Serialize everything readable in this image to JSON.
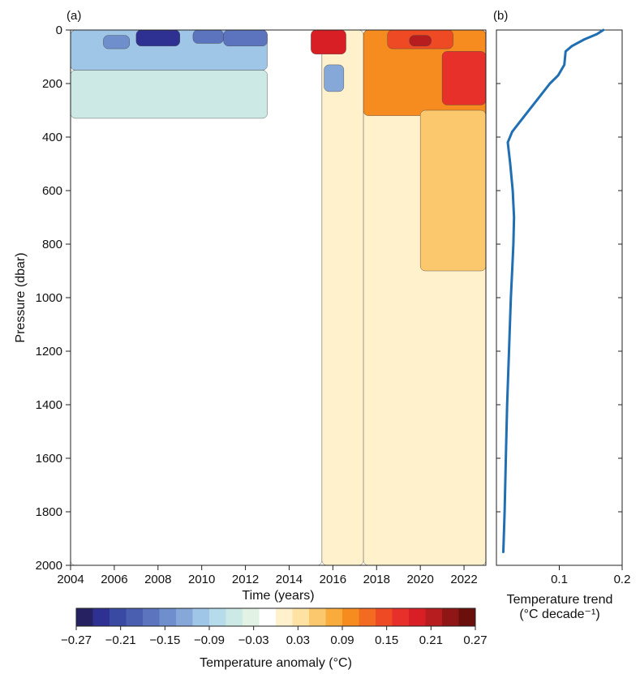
{
  "chart_data": [
    {
      "type": "heatmap",
      "panel_label": "(a)",
      "xlabel": "Time (years)",
      "ylabel": "Pressure (dbar)",
      "xlim": [
        2004,
        2023
      ],
      "ylim": [
        0,
        2000
      ],
      "y_inverted": true,
      "x_ticks": [
        "2004",
        "2006",
        "2008",
        "2010",
        "2012",
        "2014",
        "2016",
        "2018",
        "2020",
        "2022"
      ],
      "y_ticks": [
        "0",
        "200",
        "400",
        "600",
        "800",
        "1000",
        "1200",
        "1400",
        "1600",
        "1800",
        "2000"
      ],
      "grid": false,
      "colorbar": {
        "label": "Temperature anomaly (°C)",
        "range": [
          -0.27,
          0.27
        ],
        "tick_labels": [
          "−0.27",
          "−0.21",
          "−0.15",
          "−0.09",
          "−0.03",
          "0.03",
          "0.09",
          "0.15",
          "0.21",
          "0.27"
        ],
        "colors": [
          "#262262",
          "#2e3192",
          "#3a4aa3",
          "#4a5fb0",
          "#5b74bd",
          "#6f8fcc",
          "#86a8d8",
          "#9fc6e6",
          "#b6dcec",
          "#cde9e6",
          "#e2f2e4",
          "#ffffff",
          "#fff1cc",
          "#fde2a4",
          "#fcc86e",
          "#f9ab3b",
          "#f68b1f",
          "#f26b21",
          "#ee4a23",
          "#e8302a",
          "#d91f26",
          "#b71c1f",
          "#8e1715",
          "#6b0f0d"
        ]
      },
      "regions": [
        {
          "t0": 2004,
          "t1": 2015.5,
          "p0": 0,
          "p1": 2000,
          "anomaly": -0.02
        },
        {
          "t0": 2015.5,
          "t1": 2017.4,
          "p0": 0,
          "p1": 2000,
          "anomaly": 0.0
        },
        {
          "t0": 2017.4,
          "t1": 2023,
          "p0": 0,
          "p1": 2000,
          "anomaly": 0.02
        },
        {
          "t0": 2004,
          "t1": 2013,
          "p0": 0,
          "p1": 150,
          "anomaly": -0.1
        },
        {
          "t0": 2004,
          "t1": 2013,
          "p0": 150,
          "p1": 330,
          "anomaly": -0.06
        },
        {
          "t0": 2007,
          "t1": 2009,
          "p0": 0,
          "p1": 60,
          "anomaly": -0.24
        },
        {
          "t0": 2009.6,
          "t1": 2011,
          "p0": 0,
          "p1": 50,
          "anomaly": -0.18
        },
        {
          "t0": 2005.5,
          "t1": 2006.7,
          "p0": 20,
          "p1": 70,
          "anomaly": -0.14
        },
        {
          "t0": 2011,
          "t1": 2013,
          "p0": 0,
          "p1": 60,
          "anomaly": -0.16
        },
        {
          "t0": 2015.6,
          "t1": 2016.5,
          "p0": 130,
          "p1": 230,
          "anomaly": -0.12
        },
        {
          "t0": 2017.4,
          "t1": 2023,
          "p0": 0,
          "p1": 320,
          "anomaly": 0.1
        },
        {
          "t0": 2015,
          "t1": 2016.6,
          "p0": 0,
          "p1": 90,
          "anomaly": 0.2
        },
        {
          "t0": 2018.5,
          "t1": 2021.5,
          "p0": 0,
          "p1": 70,
          "anomaly": 0.14
        },
        {
          "t0": 2019.5,
          "t1": 2020.5,
          "p0": 20,
          "p1": 60,
          "anomaly": 0.22
        },
        {
          "t0": 2021,
          "t1": 2023,
          "p0": 80,
          "p1": 280,
          "anomaly": 0.16
        },
        {
          "t0": 2020,
          "t1": 2023,
          "p0": 300,
          "p1": 900,
          "anomaly": 0.06
        }
      ]
    },
    {
      "type": "line",
      "panel_label": "(b)",
      "xlabel": "Temperature trend",
      "xlabel_units": "(°C decade⁻¹)",
      "xlim": [
        0,
        0.2
      ],
      "ylim": [
        0,
        2000
      ],
      "y_inverted": true,
      "x_ticks": [
        "0.1",
        "0.2"
      ],
      "color": "#1f6fb2",
      "series": [
        {
          "points": [
            [
              0.17,
              0
            ],
            [
              0.16,
              15
            ],
            [
              0.14,
              35
            ],
            [
              0.12,
              60
            ],
            [
              0.11,
              80
            ],
            [
              0.108,
              130
            ],
            [
              0.098,
              170
            ],
            [
              0.085,
              200
            ],
            [
              0.065,
              260
            ],
            [
              0.045,
              320
            ],
            [
              0.025,
              380
            ],
            [
              0.018,
              420
            ],
            [
              0.022,
              500
            ],
            [
              0.026,
              600
            ],
            [
              0.028,
              700
            ],
            [
              0.027,
              800
            ],
            [
              0.025,
              900
            ],
            [
              0.023,
              1000
            ],
            [
              0.02,
              1200
            ],
            [
              0.017,
              1400
            ],
            [
              0.015,
              1600
            ],
            [
              0.013,
              1800
            ],
            [
              0.011,
              1950
            ]
          ]
        }
      ]
    }
  ]
}
